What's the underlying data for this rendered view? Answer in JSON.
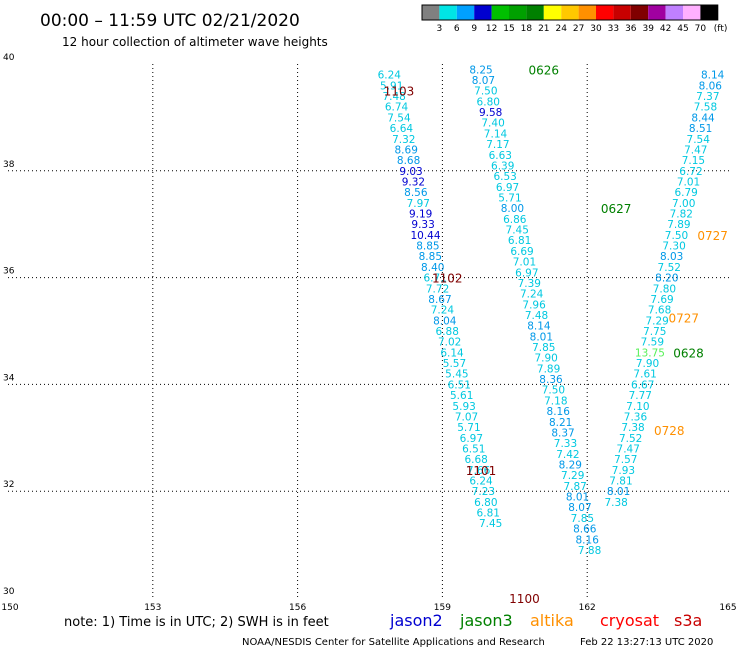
{
  "header": {
    "title": "00:00 – 11:59 UTC 02/21/2020",
    "subtitle": "12 hour collection of altimeter wave heights"
  },
  "colorbar": {
    "labels": [
      "3",
      "6",
      "9",
      "12",
      "15",
      "18",
      "21",
      "24",
      "27",
      "30",
      "33",
      "36",
      "39",
      "42",
      "45",
      "70"
    ],
    "unit": "(ft)",
    "colors": [
      "#808080",
      "#00e5e5",
      "#00a0ff",
      "#0000d0",
      "#00c000",
      "#00a000",
      "#008000",
      "#ffff00",
      "#ffc800",
      "#ff9000",
      "#ff0000",
      "#c80000",
      "#800000",
      "#a000a0",
      "#c080ff",
      "#ffb0ff",
      "#000000"
    ]
  },
  "note": "note:  1) Time is in UTC;  2) SWH is in feet",
  "satellites": [
    {
      "name": "jason2",
      "color": "#0000d0"
    },
    {
      "name": "jason3",
      "color": "#008000"
    },
    {
      "name": "altika",
      "color": "#ff9000"
    },
    {
      "name": "cryosat",
      "color": "#ff0000"
    },
    {
      "name": "s3a",
      "color": "#c80000"
    }
  ],
  "footer": {
    "credit": "NOAA/NESDIS Center for Satellite Applications and Research",
    "timestamp": "Feb 22 13:27:13 UTC 2020"
  },
  "chart_data": {
    "type": "scatter",
    "xlim": [
      150,
      165
    ],
    "ylim": [
      30,
      40
    ],
    "xticks": [
      "150",
      "153",
      "156",
      "159",
      "162",
      "165"
    ],
    "yticks": [
      "30",
      "32",
      "34",
      "36",
      "38",
      "40"
    ],
    "grid": true,
    "color_scale": {
      "light_cyan": "#00c8e0",
      "mid_blue": "#0098e8",
      "dark_blue": "#0000d0",
      "green": "#58f058"
    },
    "track_labels": [
      {
        "text": "0626",
        "x": 161.1,
        "y": 39.9,
        "color": "#008000"
      },
      {
        "text": "1103",
        "x": 158.1,
        "y": 39.5,
        "color": "#800000"
      },
      {
        "text": "0627",
        "x": 162.6,
        "y": 37.3,
        "color": "#008000"
      },
      {
        "text": "0727",
        "x": 164.6,
        "y": 36.8,
        "color": "#ff9000"
      },
      {
        "text": "1102",
        "x": 159.1,
        "y": 36.0,
        "color": "#800000"
      },
      {
        "text": "0727",
        "x": 164.0,
        "y": 35.25,
        "color": "#ff9000"
      },
      {
        "text": "0628",
        "x": 164.1,
        "y": 34.6,
        "color": "#008000"
      },
      {
        "text": "0728",
        "x": 163.7,
        "y": 33.15,
        "color": "#ff9000"
      },
      {
        "text": "1101",
        "x": 159.8,
        "y": 32.4,
        "color": "#800000"
      },
      {
        "text": "1100",
        "x": 160.7,
        "y": 30.0,
        "color": "#800000"
      }
    ],
    "series": [
      {
        "track": "A",
        "points": [
          {
            "x": 157.9,
            "y": 39.8,
            "v": "6.24",
            "c": "#00c8e0"
          },
          {
            "x": 157.95,
            "y": 39.6,
            "v": "5.91",
            "c": "#00c8e0"
          },
          {
            "x": 158.0,
            "y": 39.4,
            "v": "7.48",
            "c": "#00c8e0"
          },
          {
            "x": 158.05,
            "y": 39.2,
            "v": "6.74",
            "c": "#00c8e0"
          },
          {
            "x": 158.1,
            "y": 39.0,
            "v": "7.54",
            "c": "#00c8e0"
          },
          {
            "x": 158.15,
            "y": 38.8,
            "v": "6.64",
            "c": "#00c8e0"
          },
          {
            "x": 158.2,
            "y": 38.6,
            "v": "7.32",
            "c": "#00c8e0"
          },
          {
            "x": 158.25,
            "y": 38.4,
            "v": "8.69",
            "c": "#0098e8"
          },
          {
            "x": 158.3,
            "y": 38.2,
            "v": "8.68",
            "c": "#0098e8"
          },
          {
            "x": 158.35,
            "y": 38.0,
            "v": "9.03",
            "c": "#0000d0"
          },
          {
            "x": 158.4,
            "y": 37.8,
            "v": "9.32",
            "c": "#0000d0"
          },
          {
            "x": 158.45,
            "y": 37.6,
            "v": "8.56",
            "c": "#0098e8"
          },
          {
            "x": 158.5,
            "y": 37.4,
            "v": "7.97",
            "c": "#00c8e0"
          },
          {
            "x": 158.55,
            "y": 37.2,
            "v": "9.19",
            "c": "#0000d0"
          },
          {
            "x": 158.6,
            "y": 37.0,
            "v": "9.33",
            "c": "#0000d0"
          },
          {
            "x": 158.65,
            "y": 36.8,
            "v": "10.44",
            "c": "#0000d0"
          },
          {
            "x": 158.7,
            "y": 36.6,
            "v": "8.85",
            "c": "#0098e8"
          },
          {
            "x": 158.75,
            "y": 36.4,
            "v": "8.85",
            "c": "#0098e8"
          },
          {
            "x": 158.8,
            "y": 36.2,
            "v": "8.40",
            "c": "#0098e8"
          },
          {
            "x": 158.85,
            "y": 36.0,
            "v": "6.71",
            "c": "#00c8e0"
          },
          {
            "x": 158.9,
            "y": 35.8,
            "v": "7.72",
            "c": "#00c8e0"
          },
          {
            "x": 158.95,
            "y": 35.6,
            "v": "8.67",
            "c": "#0098e8"
          },
          {
            "x": 159.0,
            "y": 35.4,
            "v": "7.24",
            "c": "#00c8e0"
          },
          {
            "x": 159.05,
            "y": 35.2,
            "v": "8.04",
            "c": "#0098e8"
          },
          {
            "x": 159.1,
            "y": 35.0,
            "v": "6.88",
            "c": "#00c8e0"
          },
          {
            "x": 159.15,
            "y": 34.8,
            "v": "7.02",
            "c": "#00c8e0"
          },
          {
            "x": 159.2,
            "y": 34.6,
            "v": "6.14",
            "c": "#00c8e0"
          },
          {
            "x": 159.25,
            "y": 34.4,
            "v": "5.57",
            "c": "#00c8e0"
          },
          {
            "x": 159.3,
            "y": 34.2,
            "v": "5.45",
            "c": "#00c8e0"
          },
          {
            "x": 159.35,
            "y": 34.0,
            "v": "6.51",
            "c": "#00c8e0"
          },
          {
            "x": 159.4,
            "y": 33.8,
            "v": "5.61",
            "c": "#00c8e0"
          },
          {
            "x": 159.45,
            "y": 33.6,
            "v": "5.93",
            "c": "#00c8e0"
          },
          {
            "x": 159.5,
            "y": 33.4,
            "v": "7.07",
            "c": "#00c8e0"
          },
          {
            "x": 159.55,
            "y": 33.2,
            "v": "5.71",
            "c": "#00c8e0"
          },
          {
            "x": 159.6,
            "y": 33.0,
            "v": "6.97",
            "c": "#00c8e0"
          },
          {
            "x": 159.65,
            "y": 32.8,
            "v": "6.51",
            "c": "#00c8e0"
          },
          {
            "x": 159.7,
            "y": 32.6,
            "v": "6.68",
            "c": "#00c8e0"
          },
          {
            "x": 159.75,
            "y": 32.4,
            "v": "7.66",
            "c": "#00c8e0"
          },
          {
            "x": 159.8,
            "y": 32.2,
            "v": "6.24",
            "c": "#00c8e0"
          },
          {
            "x": 159.85,
            "y": 32.0,
            "v": "7.23",
            "c": "#00c8e0"
          },
          {
            "x": 159.9,
            "y": 31.8,
            "v": "6.80",
            "c": "#00c8e0"
          },
          {
            "x": 159.95,
            "y": 31.6,
            "v": "6.81",
            "c": "#00c8e0"
          },
          {
            "x": 160.0,
            "y": 31.4,
            "v": "7.45",
            "c": "#00c8e0"
          }
        ]
      },
      {
        "track": "B",
        "points": [
          {
            "x": 159.8,
            "y": 39.9,
            "v": "8.25",
            "c": "#0098e8"
          },
          {
            "x": 159.85,
            "y": 39.7,
            "v": "8.07",
            "c": "#0098e8"
          },
          {
            "x": 159.9,
            "y": 39.5,
            "v": "7.50",
            "c": "#00c8e0"
          },
          {
            "x": 159.95,
            "y": 39.3,
            "v": "6.80",
            "c": "#00c8e0"
          },
          {
            "x": 160.0,
            "y": 39.1,
            "v": "9.58",
            "c": "#0000d0"
          },
          {
            "x": 160.05,
            "y": 38.9,
            "v": "7.40",
            "c": "#00c8e0"
          },
          {
            "x": 160.1,
            "y": 38.7,
            "v": "7.14",
            "c": "#00c8e0"
          },
          {
            "x": 160.15,
            "y": 38.5,
            "v": "7.17",
            "c": "#00c8e0"
          },
          {
            "x": 160.2,
            "y": 38.3,
            "v": "6.63",
            "c": "#00c8e0"
          },
          {
            "x": 160.25,
            "y": 38.1,
            "v": "6.39",
            "c": "#00c8e0"
          },
          {
            "x": 160.3,
            "y": 37.9,
            "v": "6.53",
            "c": "#00c8e0"
          },
          {
            "x": 160.35,
            "y": 37.7,
            "v": "6.97",
            "c": "#00c8e0"
          },
          {
            "x": 160.4,
            "y": 37.5,
            "v": "5.71",
            "c": "#00c8e0"
          },
          {
            "x": 160.45,
            "y": 37.3,
            "v": "8.00",
            "c": "#0098e8"
          },
          {
            "x": 160.5,
            "y": 37.1,
            "v": "6.86",
            "c": "#00c8e0"
          },
          {
            "x": 160.55,
            "y": 36.9,
            "v": "7.45",
            "c": "#00c8e0"
          },
          {
            "x": 160.6,
            "y": 36.7,
            "v": "6.81",
            "c": "#00c8e0"
          },
          {
            "x": 160.65,
            "y": 36.5,
            "v": "6.69",
            "c": "#00c8e0"
          },
          {
            "x": 160.7,
            "y": 36.3,
            "v": "7.01",
            "c": "#00c8e0"
          },
          {
            "x": 160.75,
            "y": 36.1,
            "v": "6.97",
            "c": "#00c8e0"
          },
          {
            "x": 160.8,
            "y": 35.9,
            "v": "7.39",
            "c": "#00c8e0"
          },
          {
            "x": 160.85,
            "y": 35.7,
            "v": "7.24",
            "c": "#00c8e0"
          },
          {
            "x": 160.9,
            "y": 35.5,
            "v": "7.96",
            "c": "#00c8e0"
          },
          {
            "x": 160.95,
            "y": 35.3,
            "v": "7.48",
            "c": "#00c8e0"
          },
          {
            "x": 161.0,
            "y": 35.1,
            "v": "8.14",
            "c": "#0098e8"
          },
          {
            "x": 161.05,
            "y": 34.9,
            "v": "8.01",
            "c": "#0098e8"
          },
          {
            "x": 161.1,
            "y": 34.7,
            "v": "7.85",
            "c": "#00c8e0"
          },
          {
            "x": 161.15,
            "y": 34.5,
            "v": "7.90",
            "c": "#00c8e0"
          },
          {
            "x": 161.2,
            "y": 34.3,
            "v": "7.89",
            "c": "#00c8e0"
          },
          {
            "x": 161.25,
            "y": 34.1,
            "v": "8.36",
            "c": "#0098e8"
          },
          {
            "x": 161.3,
            "y": 33.9,
            "v": "7.50",
            "c": "#00c8e0"
          },
          {
            "x": 161.35,
            "y": 33.7,
            "v": "7.18",
            "c": "#00c8e0"
          },
          {
            "x": 161.4,
            "y": 33.5,
            "v": "8.16",
            "c": "#0098e8"
          },
          {
            "x": 161.45,
            "y": 33.3,
            "v": "8.21",
            "c": "#0098e8"
          },
          {
            "x": 161.5,
            "y": 33.1,
            "v": "8.37",
            "c": "#0098e8"
          },
          {
            "x": 161.55,
            "y": 32.9,
            "v": "7.33",
            "c": "#00c8e0"
          },
          {
            "x": 161.6,
            "y": 32.7,
            "v": "7.42",
            "c": "#00c8e0"
          },
          {
            "x": 161.65,
            "y": 32.5,
            "v": "8.29",
            "c": "#0098e8"
          },
          {
            "x": 161.7,
            "y": 32.3,
            "v": "7.29",
            "c": "#00c8e0"
          },
          {
            "x": 161.75,
            "y": 32.1,
            "v": "7.87",
            "c": "#00c8e0"
          },
          {
            "x": 161.8,
            "y": 31.9,
            "v": "8.01",
            "c": "#0098e8"
          },
          {
            "x": 161.85,
            "y": 31.7,
            "v": "8.07",
            "c": "#0098e8"
          },
          {
            "x": 161.9,
            "y": 31.5,
            "v": "7.85",
            "c": "#00c8e0"
          },
          {
            "x": 161.95,
            "y": 31.3,
            "v": "8.66",
            "c": "#0098e8"
          },
          {
            "x": 162.0,
            "y": 31.1,
            "v": "8.16",
            "c": "#0098e8"
          },
          {
            "x": 162.05,
            "y": 30.9,
            "v": "7.88",
            "c": "#00c8e0"
          }
        ]
      },
      {
        "track": "C",
        "points": [
          {
            "x": 164.6,
            "y": 39.8,
            "v": "8.14",
            "c": "#0098e8"
          },
          {
            "x": 164.55,
            "y": 39.6,
            "v": "8.06",
            "c": "#0098e8"
          },
          {
            "x": 164.5,
            "y": 39.4,
            "v": "7.37",
            "c": "#00c8e0"
          },
          {
            "x": 164.45,
            "y": 39.2,
            "v": "7.58",
            "c": "#00c8e0"
          },
          {
            "x": 164.4,
            "y": 39.0,
            "v": "8.44",
            "c": "#0098e8"
          },
          {
            "x": 164.35,
            "y": 38.8,
            "v": "8.51",
            "c": "#0098e8"
          },
          {
            "x": 164.3,
            "y": 38.6,
            "v": "7.54",
            "c": "#00c8e0"
          },
          {
            "x": 164.25,
            "y": 38.4,
            "v": "7.47",
            "c": "#00c8e0"
          },
          {
            "x": 164.2,
            "y": 38.2,
            "v": "7.15",
            "c": "#00c8e0"
          },
          {
            "x": 164.15,
            "y": 38.0,
            "v": "6.72",
            "c": "#00c8e0"
          },
          {
            "x": 164.1,
            "y": 37.8,
            "v": "7.01",
            "c": "#00c8e0"
          },
          {
            "x": 164.05,
            "y": 37.6,
            "v": "6.79",
            "c": "#00c8e0"
          },
          {
            "x": 164.0,
            "y": 37.4,
            "v": "7.00",
            "c": "#00c8e0"
          },
          {
            "x": 163.95,
            "y": 37.2,
            "v": "7.82",
            "c": "#00c8e0"
          },
          {
            "x": 163.9,
            "y": 37.0,
            "v": "7.89",
            "c": "#00c8e0"
          },
          {
            "x": 163.85,
            "y": 36.8,
            "v": "7.50",
            "c": "#00c8e0"
          },
          {
            "x": 163.8,
            "y": 36.6,
            "v": "7.30",
            "c": "#00c8e0"
          },
          {
            "x": 163.75,
            "y": 36.4,
            "v": "8.03",
            "c": "#0098e8"
          },
          {
            "x": 163.7,
            "y": 36.2,
            "v": "7.52",
            "c": "#00c8e0"
          },
          {
            "x": 163.65,
            "y": 36.0,
            "v": "8.20",
            "c": "#0098e8"
          },
          {
            "x": 163.6,
            "y": 35.8,
            "v": "7.80",
            "c": "#00c8e0"
          },
          {
            "x": 163.55,
            "y": 35.6,
            "v": "7.69",
            "c": "#00c8e0"
          },
          {
            "x": 163.5,
            "y": 35.4,
            "v": "7.68",
            "c": "#00c8e0"
          },
          {
            "x": 163.45,
            "y": 35.2,
            "v": "7.29",
            "c": "#00c8e0"
          },
          {
            "x": 163.4,
            "y": 35.0,
            "v": "7.75",
            "c": "#00c8e0"
          },
          {
            "x": 163.35,
            "y": 34.8,
            "v": "7.59",
            "c": "#00c8e0"
          },
          {
            "x": 163.3,
            "y": 34.6,
            "v": "13.75",
            "c": "#58f058"
          },
          {
            "x": 163.25,
            "y": 34.4,
            "v": "7.90",
            "c": "#00c8e0"
          },
          {
            "x": 163.2,
            "y": 34.2,
            "v": "7.61",
            "c": "#00c8e0"
          },
          {
            "x": 163.15,
            "y": 34.0,
            "v": "6.67",
            "c": "#00c8e0"
          },
          {
            "x": 163.1,
            "y": 33.8,
            "v": "7.77",
            "c": "#00c8e0"
          },
          {
            "x": 163.05,
            "y": 33.6,
            "v": "7.10",
            "c": "#00c8e0"
          },
          {
            "x": 163.0,
            "y": 33.4,
            "v": "7.36",
            "c": "#00c8e0"
          },
          {
            "x": 162.95,
            "y": 33.2,
            "v": "7.38",
            "c": "#00c8e0"
          },
          {
            "x": 162.9,
            "y": 33.0,
            "v": "7.52",
            "c": "#00c8e0"
          },
          {
            "x": 162.85,
            "y": 32.8,
            "v": "7.47",
            "c": "#00c8e0"
          },
          {
            "x": 162.8,
            "y": 32.6,
            "v": "7.57",
            "c": "#00c8e0"
          },
          {
            "x": 162.75,
            "y": 32.4,
            "v": "7.93",
            "c": "#00c8e0"
          },
          {
            "x": 162.7,
            "y": 32.2,
            "v": "7.81",
            "c": "#00c8e0"
          },
          {
            "x": 162.65,
            "y": 32.0,
            "v": "8.01",
            "c": "#0098e8"
          },
          {
            "x": 162.6,
            "y": 31.8,
            "v": "7.38",
            "c": "#00c8e0"
          }
        ]
      }
    ]
  }
}
